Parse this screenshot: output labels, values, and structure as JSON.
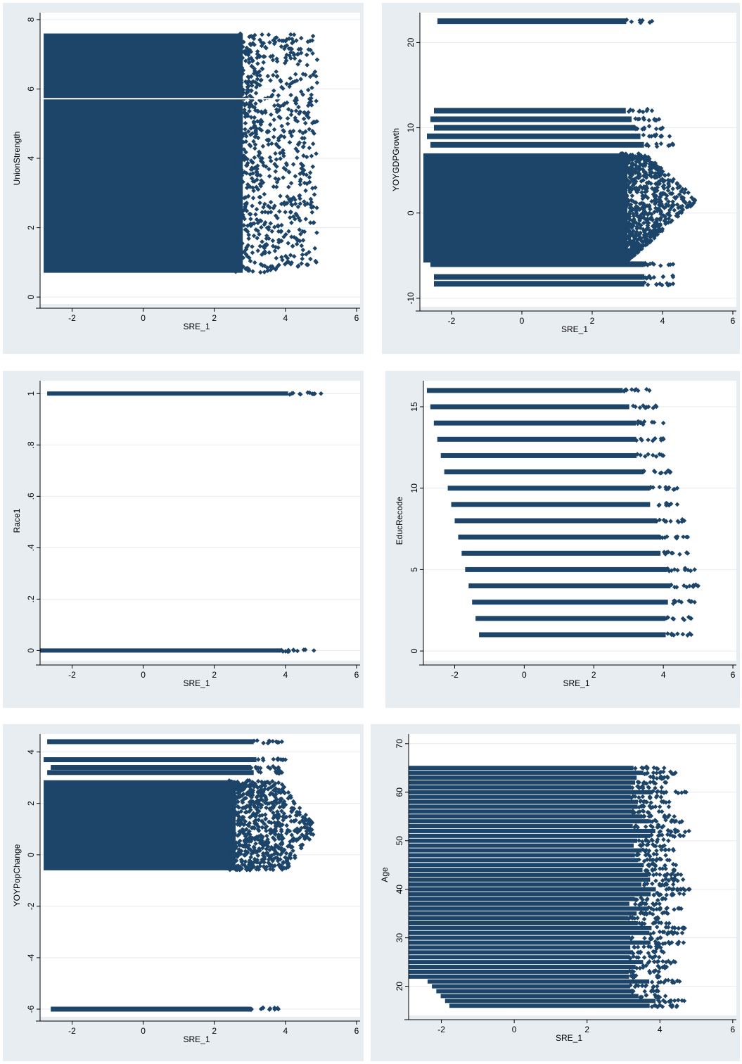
{
  "colors": {
    "marker": "#1d4569",
    "panel_bg": "#e8edf2",
    "plot_bg": "#ffffff",
    "grid": "#e6ebf0",
    "axis": "#000000"
  },
  "chart_data": [
    {
      "type": "scatter",
      "xlabel": "SRE_1",
      "ylabel": "UnionStrength",
      "xlim": [
        -2.9,
        6.1
      ],
      "ylim": [
        -0.2,
        8.2
      ],
      "xticks": [
        -2,
        0,
        2,
        4,
        6
      ],
      "yticks": [
        0,
        2,
        4,
        6,
        8
      ],
      "xtick_labels": [
        "-2",
        "0",
        "2",
        "4",
        "6"
      ],
      "ytick_labels": [
        "0",
        "2",
        "4",
        "6",
        "8"
      ],
      "grid": true,
      "legend": "none",
      "points_summary": "dense continuous cloud, x approx -2.8 to 4.9, y approx 0.7 to 7.6; gap near y 5.7",
      "y_range": [
        0.7,
        7.6
      ],
      "x_range": [
        -2.8,
        4.9
      ]
    },
    {
      "type": "scatter",
      "xlabel": "SRE_1",
      "ylabel": "YOYGDPGrowth",
      "xlim": [
        -2.9,
        6.1
      ],
      "ylim": [
        -11,
        23.5
      ],
      "xticks": [
        -2,
        0,
        2,
        4,
        6
      ],
      "yticks": [
        -10,
        0,
        10,
        20
      ],
      "xtick_labels": [
        "-2",
        "0",
        "2",
        "4",
        "6"
      ],
      "ytick_labels": [
        "-10",
        "0",
        "10",
        "20"
      ],
      "grid": true,
      "legend": "none",
      "bands": [
        {
          "y": 22.5,
          "xmin": -2.4,
          "xmax": 3.7
        },
        {
          "y": 12.0,
          "xmin": -2.5,
          "xmax": 3.7
        },
        {
          "y": 11.0,
          "xmin": -2.6,
          "xmax": 3.9
        },
        {
          "y": 10.0,
          "xmin": -2.5,
          "xmax": 4.0
        },
        {
          "y": 9.0,
          "xmin": -2.7,
          "xmax": 4.2
        },
        {
          "y": 8.0,
          "xmin": -2.6,
          "xmax": 4.3
        },
        {
          "y": -6.0,
          "xmin": -2.6,
          "xmax": 4.3
        },
        {
          "y": -7.5,
          "xmin": -2.5,
          "xmax": 4.3
        },
        {
          "y": -8.3,
          "xmin": -2.5,
          "xmax": 4.3
        }
      ],
      "cloud": {
        "ymin": -5.8,
        "ymax": 7.0,
        "xmin": -2.8,
        "xmax": 5.0
      }
    },
    {
      "type": "scatter",
      "xlabel": "SRE_1",
      "ylabel": "Race1",
      "xlim": [
        -2.9,
        6.1
      ],
      "ylim": [
        -0.04,
        1.05
      ],
      "xticks": [
        -2,
        0,
        2,
        4,
        6
      ],
      "yticks": [
        0,
        0.2,
        0.4,
        0.6,
        0.8,
        1
      ],
      "xtick_labels": [
        "-2",
        "0",
        "2",
        "4",
        "6"
      ],
      "ytick_labels": [
        "0",
        ".2",
        ".4",
        ".6",
        ".8",
        "1"
      ],
      "grid": true,
      "legend": "none",
      "bands": [
        {
          "y": 1,
          "xmin": -2.7,
          "xmax": 5.0
        },
        {
          "y": 0,
          "xmin": -2.9,
          "xmax": 4.8
        }
      ]
    },
    {
      "type": "scatter",
      "xlabel": "SRE_1",
      "ylabel": "EducRecode",
      "xlim": [
        -2.9,
        6.1
      ],
      "ylim": [
        -0.6,
        16.6
      ],
      "xticks": [
        -2,
        0,
        2,
        4,
        6
      ],
      "yticks": [
        0,
        5,
        10,
        15
      ],
      "xtick_labels": [
        "-2",
        "0",
        "2",
        "4",
        "6"
      ],
      "ytick_labels": [
        "0",
        "5",
        "10",
        "15"
      ],
      "grid": true,
      "legend": "none",
      "bands": [
        {
          "y": 16,
          "xmin": -2.8,
          "xmax": 3.6
        },
        {
          "y": 15,
          "xmin": -2.7,
          "xmax": 3.8
        },
        {
          "y": 14,
          "xmin": -2.6,
          "xmax": 4.0
        },
        {
          "y": 13,
          "xmin": -2.5,
          "xmax": 4.0
        },
        {
          "y": 12,
          "xmin": -2.4,
          "xmax": 4.0
        },
        {
          "y": 11,
          "xmin": -2.3,
          "xmax": 4.2
        },
        {
          "y": 10,
          "xmin": -2.2,
          "xmax": 4.4
        },
        {
          "y": 9,
          "xmin": -2.1,
          "xmax": 4.4
        },
        {
          "y": 8,
          "xmin": -2.0,
          "xmax": 4.6
        },
        {
          "y": 7,
          "xmin": -1.9,
          "xmax": 4.7
        },
        {
          "y": 6,
          "xmin": -1.8,
          "xmax": 4.7
        },
        {
          "y": 5,
          "xmin": -1.7,
          "xmax": 4.9
        },
        {
          "y": 4,
          "xmin": -1.6,
          "xmax": 5.0
        },
        {
          "y": 3,
          "xmin": -1.5,
          "xmax": 4.9
        },
        {
          "y": 2,
          "xmin": -1.4,
          "xmax": 4.8
        },
        {
          "y": 1,
          "xmin": -1.3,
          "xmax": 4.8
        }
      ]
    },
    {
      "type": "scatter",
      "xlabel": "SRE_1",
      "ylabel": "YOYPopChange",
      "xlim": [
        -2.9,
        6.1
      ],
      "ylim": [
        -6.3,
        4.7
      ],
      "xticks": [
        -2,
        0,
        2,
        4,
        6
      ],
      "yticks": [
        -6,
        -4,
        -2,
        0,
        2,
        4
      ],
      "xtick_labels": [
        "-2",
        "0",
        "2",
        "4",
        "6"
      ],
      "ytick_labels": [
        "-6",
        "-4",
        "-2",
        "0",
        "2",
        "4"
      ],
      "grid": true,
      "legend": "none",
      "bands": [
        {
          "y": 4.4,
          "xmin": -2.7,
          "xmax": 3.9
        },
        {
          "y": 3.7,
          "xmin": -2.8,
          "xmax": 4.0
        },
        {
          "y": 3.4,
          "xmin": -2.6,
          "xmax": 3.8
        },
        {
          "y": 3.2,
          "xmin": -2.7,
          "xmax": 3.9
        },
        {
          "y": -6.0,
          "xmin": -2.6,
          "xmax": 3.8
        }
      ],
      "cloud": {
        "ymin": -0.6,
        "ymax": 2.9,
        "xmin": -2.8,
        "xmax": 4.9
      }
    },
    {
      "type": "scatter",
      "xlabel": "SRE_1",
      "ylabel": "Age",
      "xlim": [
        -2.9,
        6.1
      ],
      "ylim": [
        14,
        72
      ],
      "xticks": [
        -2,
        0,
        2,
        4,
        6
      ],
      "yticks": [
        20,
        30,
        40,
        50,
        60,
        70
      ],
      "xtick_labels": [
        "-2",
        "0",
        "2",
        "4",
        "6"
      ],
      "ytick_labels": [
        "20",
        "30",
        "40",
        "50",
        "60",
        "70"
      ],
      "grid": true,
      "legend": "none",
      "integer_bands": {
        "ymin": 16,
        "ymax": 65
      },
      "x_range": [
        -2.9,
        4.9
      ]
    }
  ]
}
